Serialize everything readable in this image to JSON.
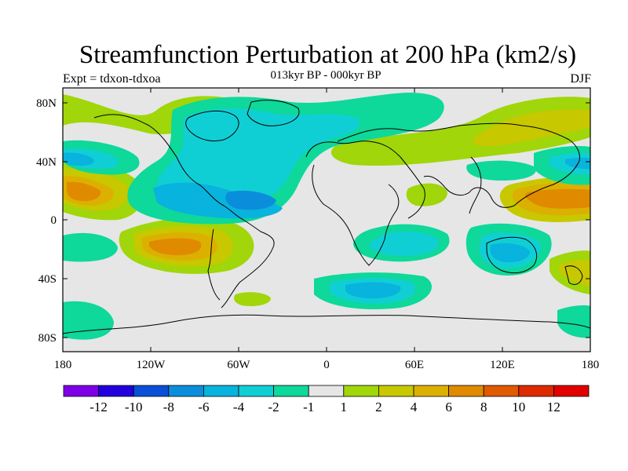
{
  "title": "Streamfunction Perturbation at 200 hPa (km2/s)",
  "subtitle": "013kyr BP - 000kyr BP",
  "left_string": "Expt = tdxon-tdxoa",
  "right_string": "DJF",
  "axes": {
    "lat_ticks": [
      "80N",
      "40N",
      "0",
      "40S",
      "80S"
    ],
    "lon_ticks": [
      "180",
      "120W",
      "60W",
      "0",
      "60E",
      "120E",
      "180"
    ]
  },
  "colorbar": {
    "labels": [
      "-12",
      "-10",
      "-8",
      "-6",
      "-4",
      "-2",
      "-1",
      "1",
      "2",
      "4",
      "6",
      "8",
      "10",
      "12"
    ],
    "colors": [
      "#7d00e6",
      "#2200dd",
      "#0b4fd8",
      "#0a8edb",
      "#08b3dd",
      "#10cfd4",
      "#0ed89a",
      "#e6e6e6",
      "#a0d60a",
      "#c8c800",
      "#dcb000",
      "#e08a00",
      "#df5a00",
      "#dd2a00",
      "#e00000"
    ]
  },
  "map": {
    "projection": "cylindrical-equidistant",
    "lon_range": [
      -180,
      180
    ],
    "lat_range": [
      -90,
      90
    ]
  }
}
